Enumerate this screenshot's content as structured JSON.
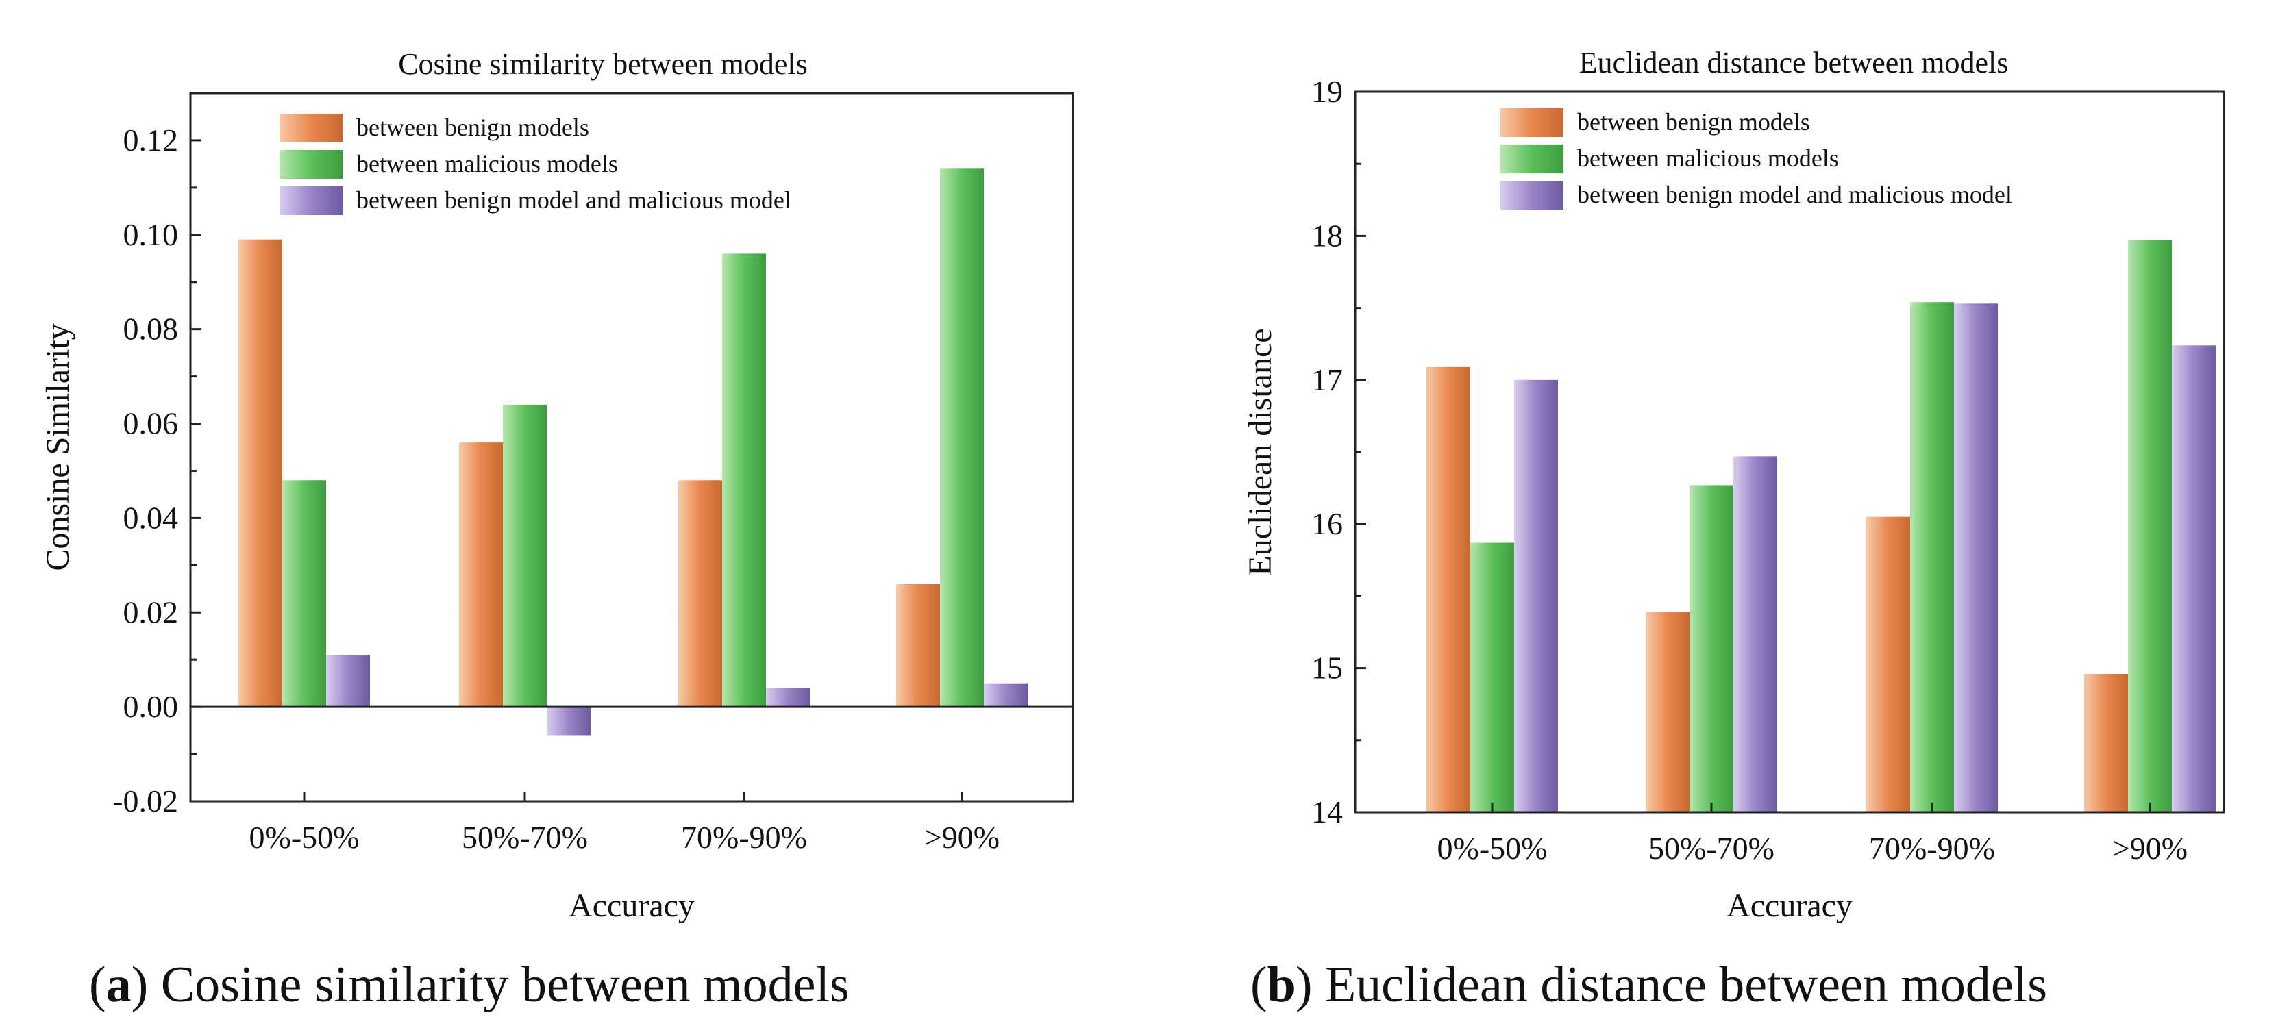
{
  "colors": {
    "benign": "#e8874f",
    "malicious": "#5cc05a",
    "mixed": "#9a84c7"
  },
  "chart_data": [
    {
      "type": "bar",
      "title": "Cosine similarity between models",
      "xlabel": "Accuracy",
      "ylabel": "Consine Similarity",
      "categories": [
        "0%-50%",
        "50%-70%",
        "70%-90%",
        ">90%"
      ],
      "ylim": [
        -0.02,
        0.13
      ],
      "yticks": [
        "-0.02",
        "0.00",
        "0.02",
        "0.04",
        "0.06",
        "0.08",
        "0.10",
        "0.12"
      ],
      "caption_letter": "a",
      "caption_text": " Cosine similarity between models",
      "series": [
        {
          "name": "between benign models",
          "values": [
            0.099,
            0.056,
            0.048,
            0.026
          ]
        },
        {
          "name": "between malicious models",
          "values": [
            0.048,
            0.064,
            0.096,
            0.114
          ]
        },
        {
          "name": "between benign model and malicious model",
          "values": [
            0.011,
            -0.006,
            0.004,
            0.005
          ]
        }
      ]
    },
    {
      "type": "bar",
      "title": "Euclidean distance between models",
      "xlabel": "Accuracy",
      "ylabel": "Euclidean distance",
      "categories": [
        "0%-50%",
        "50%-70%",
        "70%-90%",
        ">90%"
      ],
      "ylim": [
        14,
        19
      ],
      "yticks": [
        "14",
        "15",
        "16",
        "17",
        "18",
        "19"
      ],
      "caption_letter": "b",
      "caption_text": " Euclidean distance between models",
      "series": [
        {
          "name": "between benign models",
          "values": [
            17.09,
            15.39,
            16.05,
            14.96
          ]
        },
        {
          "name": "between malicious models",
          "values": [
            15.87,
            16.27,
            17.54,
            17.97
          ]
        },
        {
          "name": "between benign model and malicious model",
          "values": [
            17.0,
            16.47,
            17.53,
            17.24
          ]
        }
      ]
    }
  ]
}
